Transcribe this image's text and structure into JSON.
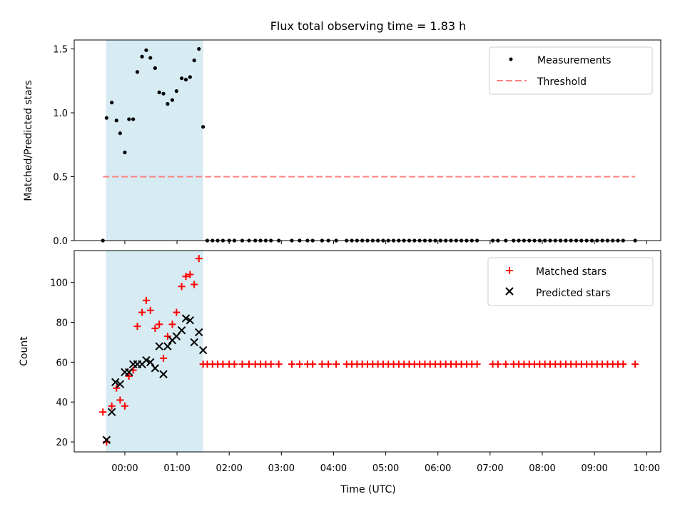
{
  "chart_data": {
    "type": "multi-panel",
    "title": "Flux total observing time = 1.83 h",
    "colors": {
      "shade": "#add8e6",
      "measurement": "#000000",
      "threshold": "#ff7f7f",
      "matched": "#ff0000",
      "predicted": "#000000"
    },
    "x_axis": {
      "label": "Time (UTC)",
      "unit": "hours",
      "range": [
        -0.97,
        10.27
      ],
      "tick_values": [
        0,
        1,
        2,
        3,
        4,
        5,
        6,
        7,
        8,
        9,
        10
      ],
      "tick_labels": [
        "00:00",
        "01:00",
        "02:00",
        "03:00",
        "04:00",
        "05:00",
        "06:00",
        "07:00",
        "08:00",
        "09:00",
        "10:00"
      ]
    },
    "shaded_interval": [
      -0.36,
      1.5
    ],
    "top": {
      "ylabel": "Matched/Predicted stars",
      "ylim": [
        0,
        1.57
      ],
      "y_ticks": [
        0.0,
        0.5,
        1.0,
        1.5
      ],
      "y_tick_labels": [
        "0.0",
        "0.5",
        "1.0",
        "1.5"
      ],
      "legend": [
        "Measurements",
        "Threshold"
      ],
      "threshold": {
        "value": 0.5,
        "x": [
          -0.42,
          9.78
        ]
      },
      "measurements": {
        "x": [
          -0.42,
          -0.35,
          -0.25,
          -0.16,
          -0.09,
          0.0,
          0.08,
          0.16,
          0.24,
          0.33,
          0.41,
          0.49,
          0.58,
          0.66,
          0.74,
          0.82,
          0.91,
          0.99,
          1.09,
          1.17,
          1.25,
          1.33,
          1.42,
          1.5,
          1.58,
          1.68,
          1.78,
          1.88,
          2.0,
          2.1,
          2.25,
          2.38,
          2.5,
          2.6,
          2.7,
          2.8,
          2.95,
          3.2,
          3.35,
          3.5,
          3.6,
          3.78,
          3.9,
          4.05,
          4.25,
          4.35,
          4.45,
          4.55,
          4.65,
          4.75,
          4.85,
          4.95,
          5.05,
          5.15,
          5.25,
          5.35,
          5.45,
          5.55,
          5.65,
          5.75,
          5.85,
          5.95,
          6.05,
          6.15,
          6.25,
          6.35,
          6.45,
          6.55,
          6.65,
          6.75,
          7.05,
          7.15,
          7.3,
          7.45,
          7.55,
          7.65,
          7.75,
          7.85,
          7.95,
          8.05,
          8.15,
          8.25,
          8.35,
          8.45,
          8.55,
          8.65,
          8.75,
          8.85,
          8.95,
          9.05,
          9.15,
          9.25,
          9.35,
          9.45,
          9.55,
          9.78
        ],
        "y": [
          0.0,
          0.96,
          1.08,
          0.94,
          0.84,
          0.69,
          0.95,
          0.95,
          1.32,
          1.44,
          1.49,
          1.43,
          1.35,
          1.16,
          1.15,
          1.07,
          1.1,
          1.17,
          1.27,
          1.26,
          1.28,
          1.41,
          1.5,
          0.89,
          0.0,
          0.0,
          0.0,
          0.0,
          0.0,
          0.0,
          0.0,
          0.0,
          0.0,
          0.0,
          0.0,
          0.0,
          0.0,
          0.0,
          0.0,
          0.0,
          0.0,
          0.0,
          0.0,
          0.0,
          0.0,
          0.0,
          0.0,
          0.0,
          0.0,
          0.0,
          0.0,
          0.0,
          0.0,
          0.0,
          0.0,
          0.0,
          0.0,
          0.0,
          0.0,
          0.0,
          0.0,
          0.0,
          0.0,
          0.0,
          0.0,
          0.0,
          0.0,
          0.0,
          0.0,
          0.0,
          0.0,
          0.0,
          0.0,
          0.0,
          0.0,
          0.0,
          0.0,
          0.0,
          0.0,
          0.0,
          0.0,
          0.0,
          0.0,
          0.0,
          0.0,
          0.0,
          0.0,
          0.0,
          0.0,
          0.0,
          0.0,
          0.0,
          0.0,
          0.0,
          0.0,
          0.0
        ]
      }
    },
    "bottom": {
      "ylabel": "Count",
      "ylim": [
        15,
        116
      ],
      "y_ticks": [
        20,
        40,
        60,
        80,
        100
      ],
      "y_tick_labels": [
        "20",
        "40",
        "60",
        "80",
        "100"
      ],
      "legend": [
        "Matched stars",
        "Predicted stars"
      ],
      "matched": {
        "x": [
          -0.42,
          -0.35,
          -0.25,
          -0.16,
          -0.09,
          0.0,
          0.08,
          0.16,
          0.24,
          0.33,
          0.41,
          0.49,
          0.58,
          0.66,
          0.74,
          0.82,
          0.91,
          0.99,
          1.09,
          1.17,
          1.25,
          1.33,
          1.42,
          1.5,
          1.58,
          1.68,
          1.78,
          1.88,
          2.0,
          2.1,
          2.25,
          2.38,
          2.5,
          2.6,
          2.7,
          2.8,
          2.95,
          3.2,
          3.35,
          3.5,
          3.6,
          3.78,
          3.9,
          4.05,
          4.25,
          4.35,
          4.45,
          4.55,
          4.65,
          4.75,
          4.85,
          4.95,
          5.05,
          5.15,
          5.25,
          5.35,
          5.45,
          5.55,
          5.65,
          5.75,
          5.85,
          5.95,
          6.05,
          6.15,
          6.25,
          6.35,
          6.45,
          6.55,
          6.65,
          6.75,
          7.05,
          7.15,
          7.3,
          7.45,
          7.55,
          7.65,
          7.75,
          7.85,
          7.95,
          8.05,
          8.15,
          8.25,
          8.35,
          8.45,
          8.55,
          8.65,
          8.75,
          8.85,
          8.95,
          9.05,
          9.15,
          9.25,
          9.35,
          9.45,
          9.55,
          9.78
        ],
        "y": [
          35,
          20,
          38,
          47,
          41,
          38,
          53,
          56,
          78,
          85,
          91,
          86,
          77,
          79,
          62,
          73,
          79,
          85,
          98,
          103,
          104,
          99,
          112,
          59,
          59,
          59,
          59,
          59,
          59,
          59,
          59,
          59,
          59,
          59,
          59,
          59,
          59,
          59,
          59,
          59,
          59,
          59,
          59,
          59,
          59,
          59,
          59,
          59,
          59,
          59,
          59,
          59,
          59,
          59,
          59,
          59,
          59,
          59,
          59,
          59,
          59,
          59,
          59,
          59,
          59,
          59,
          59,
          59,
          59,
          59,
          59,
          59,
          59,
          59,
          59,
          59,
          59,
          59,
          59,
          59,
          59,
          59,
          59,
          59,
          59,
          59,
          59,
          59,
          59,
          59,
          59,
          59,
          59,
          59,
          59,
          59
        ]
      },
      "predicted": {
        "x": [
          -0.35,
          -0.25,
          -0.18,
          -0.09,
          0.0,
          0.08,
          0.16,
          0.24,
          0.33,
          0.41,
          0.49,
          0.58,
          0.66,
          0.74,
          0.82,
          0.91,
          0.99,
          1.09,
          1.17,
          1.25,
          1.33,
          1.42,
          1.5
        ],
        "y": [
          21,
          35,
          50,
          49,
          55,
          55,
          59,
          59,
          59,
          61,
          60,
          57,
          68,
          54,
          68,
          71,
          73,
          76,
          82,
          81,
          70,
          75,
          66
        ]
      }
    }
  }
}
